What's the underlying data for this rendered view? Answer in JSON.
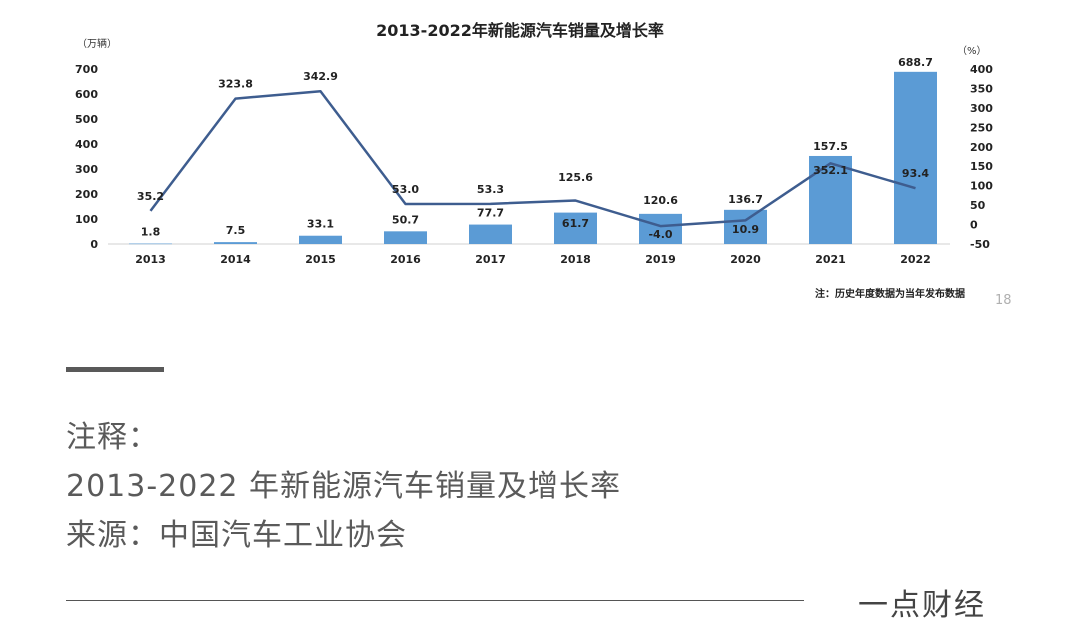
{
  "chart_data": {
    "type": "bar+line",
    "title": "2013-2022年新能源汽车销量及增长率",
    "y_left_unit": "（万辆）",
    "y_right_unit": "（%）",
    "categories": [
      "2013",
      "2014",
      "2015",
      "2016",
      "2017",
      "2018",
      "2019",
      "2020",
      "2021",
      "2022"
    ],
    "y_left_ticks": [
      "0",
      "100",
      "200",
      "300",
      "400",
      "500",
      "600",
      "700"
    ],
    "y_right_ticks": [
      "-50",
      "0",
      "50",
      "100",
      "150",
      "200",
      "250",
      "300",
      "350",
      "400"
    ],
    "ylim_left": [
      0,
      700
    ],
    "ylim_right": [
      -50,
      400
    ],
    "grid": false,
    "series": [
      {
        "type": "bar",
        "axis": "left",
        "color": "#5b9bd5",
        "values": [
          1.8,
          7.5,
          33.1,
          50.7,
          77.7,
          125.6,
          120.6,
          136.7,
          352.1,
          688.7
        ],
        "labels": [
          "1.8",
          "7.5",
          "33.1",
          "50.7",
          "77.7",
          "125.6",
          "120.6",
          "136.7",
          "352.1",
          "688.7"
        ]
      },
      {
        "type": "line",
        "axis": "right",
        "color": "#3e5d8f",
        "values": [
          35.2,
          323.8,
          342.9,
          53.0,
          53.3,
          61.7,
          -4.0,
          10.9,
          157.5,
          93.4
        ],
        "labels": [
          "35.2",
          "323.8",
          "342.9",
          "53.0",
          "53.3",
          "61.7",
          "-4.0",
          "10.9",
          "157.5",
          "93.4"
        ]
      }
    ],
    "note": "注：历史年度数据为当年发布数据"
  },
  "page_number": "18",
  "caption": {
    "label": "注释：",
    "title": "2013-2022 年新能源汽车销量及增长率",
    "source": "来源：中国汽车工业协会"
  },
  "brand": "一点财经"
}
